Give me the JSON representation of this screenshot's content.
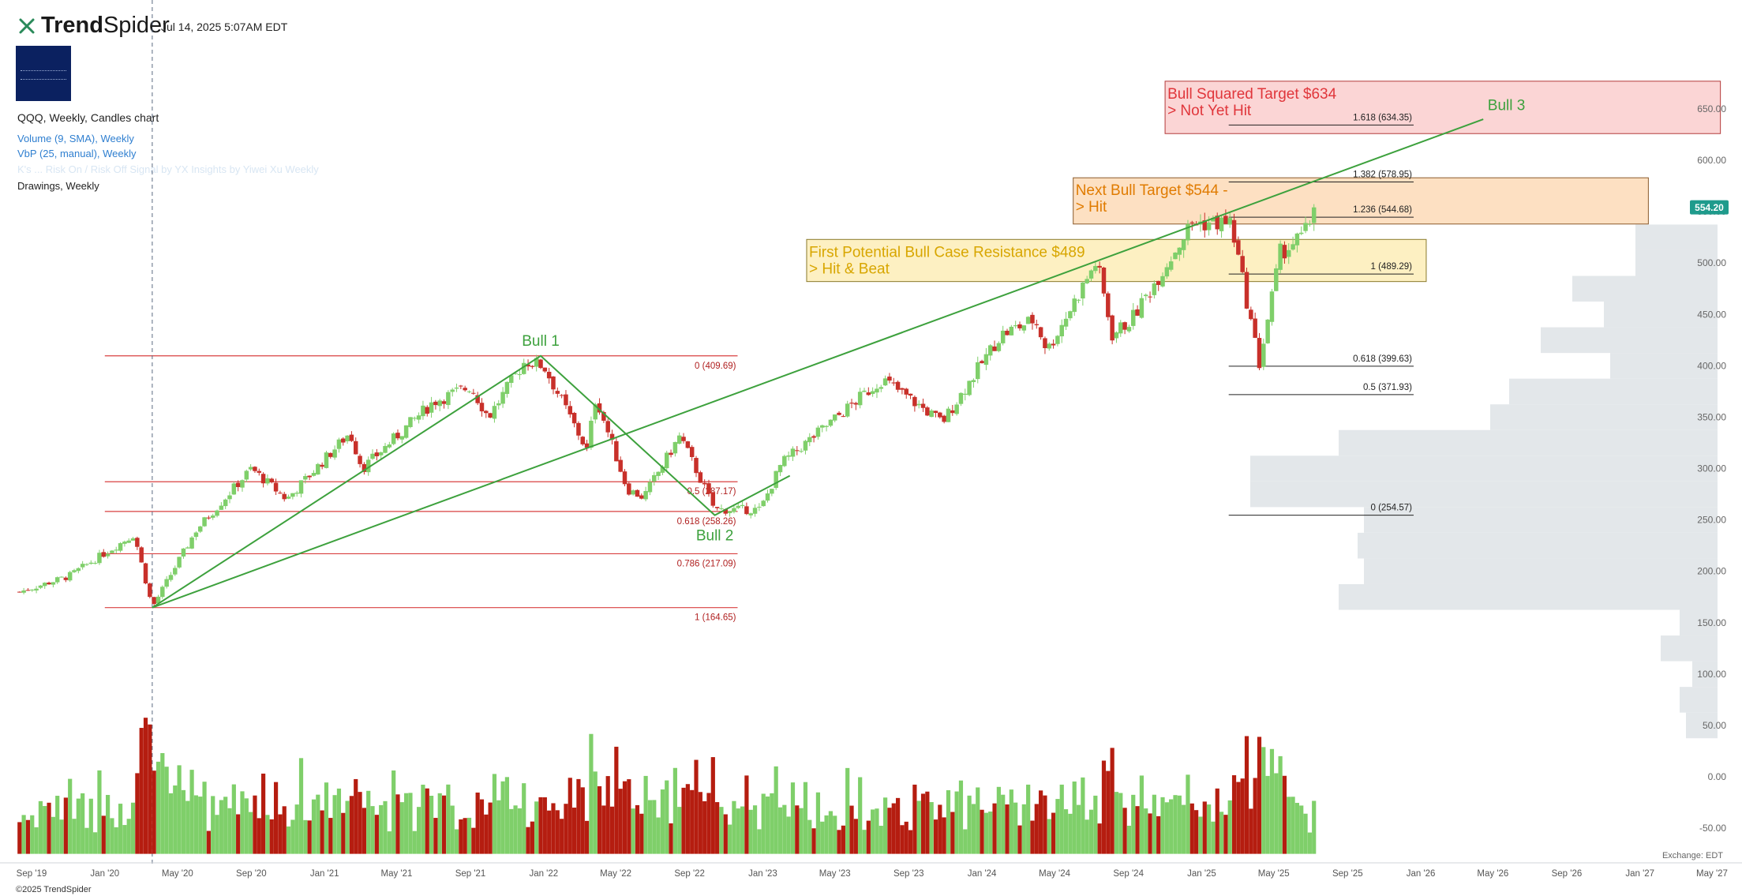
{
  "header": {
    "brand_trend": "Trend",
    "brand_spider": "Spider",
    "timestamp": "Jul 14, 2025 5:07AM EDT"
  },
  "legend": {
    "symbol_line": "QQQ, Weekly, Candles chart",
    "volume_line": "Volume (9, SMA), Weekly",
    "vbp_line": "VbP (25, manual), Weekly",
    "faint_line": "K's ... Risk On / Risk Off Signal by YX Insights by Yiwei Xu Weekly",
    "drawings_line": "Drawings, Weekly"
  },
  "footer": {
    "copyright": "©2025 TrendSpider"
  },
  "colors": {
    "up": "#7fcf6a",
    "down": "#c8302a",
    "vol_up": "#7fcf6a",
    "vol_down": "#b51d10",
    "trendline": "#3da13d",
    "fib_red": "#d94040",
    "price_tag": "#1f9b8c",
    "vbp": "#e3e7ea"
  },
  "chart_data": {
    "type": "candlestick",
    "symbol": "QQQ",
    "timeframe": "Weekly",
    "y_range": [
      -75,
      700
    ],
    "y_ticks": [
      {
        "value": 650,
        "label": "650.00"
      },
      {
        "value": 600,
        "label": "600.00"
      },
      {
        "value": 550,
        "label": "550.00"
      },
      {
        "value": 500,
        "label": "500.00"
      },
      {
        "value": 450,
        "label": "450.00"
      },
      {
        "value": 400,
        "label": "400.00"
      },
      {
        "value": 350,
        "label": "350.00"
      },
      {
        "value": 300,
        "label": "300.00"
      },
      {
        "value": 250,
        "label": "250.00"
      },
      {
        "value": 200,
        "label": "200.00"
      },
      {
        "value": 150,
        "label": "150.00"
      },
      {
        "value": 100,
        "label": "100.00"
      },
      {
        "value": 50,
        "label": "50.00"
      },
      {
        "value": 0,
        "label": "0.00"
      },
      {
        "value": -50,
        "label": "-50.00"
      }
    ],
    "x_ticks": [
      {
        "date": "2019-09-01",
        "label": "Sep '19"
      },
      {
        "date": "2020-01-01",
        "label": "Jan '20"
      },
      {
        "date": "2020-05-01",
        "label": "May '20"
      },
      {
        "date": "2020-09-01",
        "label": "Sep '20"
      },
      {
        "date": "2021-01-01",
        "label": "Jan '21"
      },
      {
        "date": "2021-05-01",
        "label": "May '21"
      },
      {
        "date": "2021-09-01",
        "label": "Sep '21"
      },
      {
        "date": "2022-01-01",
        "label": "Jan '22"
      },
      {
        "date": "2022-05-01",
        "label": "May '22"
      },
      {
        "date": "2022-09-01",
        "label": "Sep '22"
      },
      {
        "date": "2023-01-01",
        "label": "Jan '23"
      },
      {
        "date": "2023-05-01",
        "label": "May '23"
      },
      {
        "date": "2023-09-01",
        "label": "Sep '23"
      },
      {
        "date": "2024-01-01",
        "label": "Jan '24"
      },
      {
        "date": "2024-05-01",
        "label": "May '24"
      },
      {
        "date": "2024-09-01",
        "label": "Sep '24"
      },
      {
        "date": "2025-01-01",
        "label": "Jan '25"
      },
      {
        "date": "2025-05-01",
        "label": "May '25"
      },
      {
        "date": "2025-09-01",
        "label": "Sep '25"
      },
      {
        "date": "2026-01-01",
        "label": "Jan '26"
      },
      {
        "date": "2026-05-01",
        "label": "May '26"
      },
      {
        "date": "2026-09-01",
        "label": "Sep '26"
      },
      {
        "date": "2027-01-01",
        "label": "Jan '27"
      },
      {
        "date": "2027-05-01",
        "label": "May '27"
      }
    ],
    "price_path": [
      {
        "date": "2019-08-12",
        "close": 180
      },
      {
        "date": "2019-11-01",
        "close": 195
      },
      {
        "date": "2020-02-19",
        "close": 236
      },
      {
        "date": "2020-03-20",
        "close": 165
      },
      {
        "date": "2020-06-01",
        "close": 240
      },
      {
        "date": "2020-09-01",
        "close": 300
      },
      {
        "date": "2020-10-30",
        "close": 270
      },
      {
        "date": "2021-02-12",
        "close": 335
      },
      {
        "date": "2021-03-05",
        "close": 300
      },
      {
        "date": "2021-07-01",
        "close": 365
      },
      {
        "date": "2021-09-01",
        "close": 380
      },
      {
        "date": "2021-10-01",
        "close": 350
      },
      {
        "date": "2021-12-01",
        "close": 405
      },
      {
        "date": "2022-01-01",
        "close": 400
      },
      {
        "date": "2022-03-14",
        "close": 318
      },
      {
        "date": "2022-03-29",
        "close": 370
      },
      {
        "date": "2022-05-20",
        "close": 280
      },
      {
        "date": "2022-06-16",
        "close": 272
      },
      {
        "date": "2022-08-16",
        "close": 332
      },
      {
        "date": "2022-10-13",
        "close": 260
      },
      {
        "date": "2022-12-28",
        "close": 260
      },
      {
        "date": "2023-02-01",
        "close": 305
      },
      {
        "date": "2023-07-19",
        "close": 387
      },
      {
        "date": "2023-10-27",
        "close": 345
      },
      {
        "date": "2024-02-01",
        "close": 430
      },
      {
        "date": "2024-03-29",
        "close": 445
      },
      {
        "date": "2024-04-19",
        "close": 415
      },
      {
        "date": "2024-07-10",
        "close": 502
      },
      {
        "date": "2024-08-05",
        "close": 430
      },
      {
        "date": "2024-09-06",
        "close": 445
      },
      {
        "date": "2024-12-16",
        "close": 539
      },
      {
        "date": "2025-02-19",
        "close": 539
      },
      {
        "date": "2025-04-07",
        "close": 402
      },
      {
        "date": "2025-05-12",
        "close": 510
      },
      {
        "date": "2025-06-20",
        "close": 527
      },
      {
        "date": "2025-07-11",
        "close": 554.2
      }
    ],
    "last_price": {
      "value": 554.2,
      "label": "554.20"
    },
    "horizontal_fib_1": [
      {
        "value": 409.69,
        "label": "0 (409.69)"
      },
      {
        "value": 287.17,
        "label": "0.5 (287.17)"
      },
      {
        "value": 258.26,
        "label": "0.618 (258.26)"
      },
      {
        "value": 217.09,
        "label": "0.786 (217.09)"
      },
      {
        "value": 164.65,
        "label": "1 (164.65)"
      }
    ],
    "horizontal_fib_2": [
      {
        "value": 634.35,
        "label": "1.618 (634.35)"
      },
      {
        "value": 578.95,
        "label": "1.382 (578.95)"
      },
      {
        "value": 544.68,
        "label": "1.236 (544.68)"
      },
      {
        "value": 489.29,
        "label": "1 (489.29)"
      },
      {
        "value": 399.63,
        "label": "0.618 (399.63)"
      },
      {
        "value": 371.93,
        "label": "0.5 (371.93)"
      },
      {
        "value": 254.57,
        "label": "0 (254.57)"
      }
    ],
    "pivots": [
      {
        "label": "Bull 1",
        "date": "2021-12-27",
        "value": 409.69
      },
      {
        "label": "Bull 2",
        "date": "2022-10-13",
        "value": 254.57
      },
      {
        "label": "Bull 3",
        "date": "2026-04-01",
        "value": 634.35
      }
    ],
    "trendline": [
      {
        "date": "2020-03-20",
        "value": 164.65
      },
      {
        "date": "2026-04-15",
        "value": 640
      }
    ],
    "target_boxes": [
      {
        "title": "Bull Squared Target $634",
        "status": "> Not Yet Hit",
        "from": "2024-11-01",
        "to": "2027-05-15",
        "low": 626,
        "high": 677,
        "color": "red"
      },
      {
        "title": "Next Bull Target $544 -",
        "status": "> Hit",
        "from": "2024-06-01",
        "to": "2027-01-15",
        "low": 538,
        "high": 583,
        "color": "orange"
      },
      {
        "title": "First Potential Bull Case Resistance $489",
        "status": "> Hit & Beat",
        "from": "2023-03-15",
        "to": "2026-01-10",
        "low": 482,
        "high": 523,
        "color": "yellow"
      }
    ],
    "volume_profile": [
      {
        "value": 525,
        "length": 0.13
      },
      {
        "value": 500,
        "length": 0.13
      },
      {
        "value": 475,
        "length": 0.23
      },
      {
        "value": 450,
        "length": 0.18
      },
      {
        "value": 425,
        "length": 0.28
      },
      {
        "value": 400,
        "length": 0.17
      },
      {
        "value": 375,
        "length": 0.33
      },
      {
        "value": 350,
        "length": 0.36
      },
      {
        "value": 325,
        "length": 0.6
      },
      {
        "value": 300,
        "length": 0.74
      },
      {
        "value": 275,
        "length": 0.74
      },
      {
        "value": 250,
        "length": 0.56
      },
      {
        "value": 225,
        "length": 0.57
      },
      {
        "value": 200,
        "length": 0.56
      },
      {
        "value": 175,
        "length": 0.6
      },
      {
        "value": 150,
        "length": 0.06
      },
      {
        "value": 125,
        "length": 0.09
      },
      {
        "value": 100,
        "length": 0.04
      },
      {
        "value": 75,
        "length": 0.06
      },
      {
        "value": 50,
        "length": 0.05
      }
    ],
    "xlabel": "",
    "ylabel": "",
    "exchange_label": "Exchange: EDT",
    "grid": false
  }
}
